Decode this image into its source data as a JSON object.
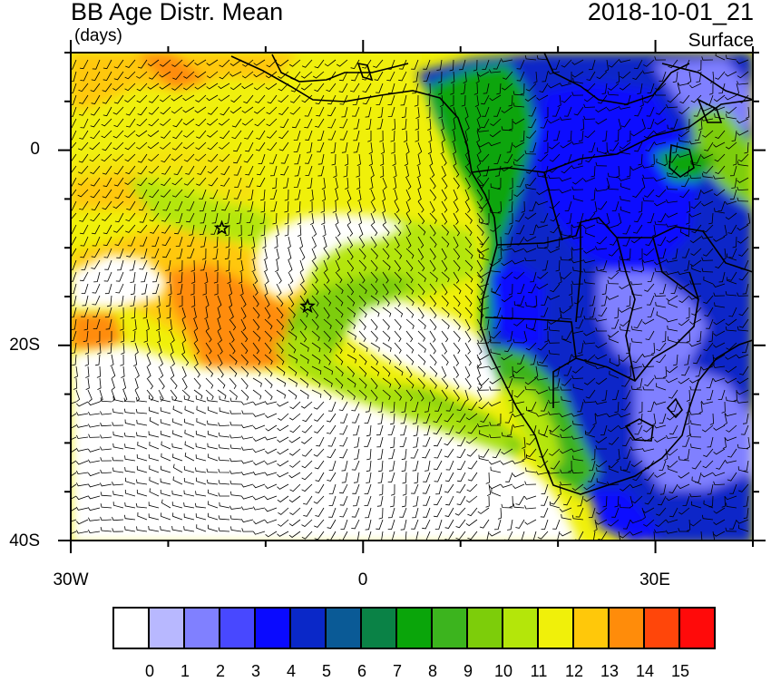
{
  "header": {
    "title": "BB Age Distr. Mean",
    "units": "(days)",
    "datetime": "2018-10-01_21",
    "level": "Surface"
  },
  "axes": {
    "lat_labels": [
      "0",
      "20S",
      "40S"
    ],
    "lon_labels": [
      "30W",
      "0",
      "30E"
    ]
  },
  "colorbar": {
    "labels": [
      "0",
      "1",
      "2",
      "3",
      "4",
      "5",
      "6",
      "7",
      "8",
      "9",
      "10",
      "11",
      "12",
      "13",
      "14",
      "15"
    ],
    "colors": [
      "#ffffff",
      "#b8b8ff",
      "#8080ff",
      "#4848ff",
      "#0a0aff",
      "#0a28c8",
      "#0a5a96",
      "#0a8246",
      "#0aa50a",
      "#3cb41e",
      "#7dcd0a",
      "#b4e60a",
      "#f0f00a",
      "#ffc80a",
      "#ff8c0a",
      "#ff460a",
      "#ff0a0a"
    ]
  },
  "markers": [
    {
      "name": "star-site-1",
      "lon": -14.5,
      "lat": -8.0
    },
    {
      "name": "star-site-2",
      "lon": -5.7,
      "lat": -16.0
    }
  ],
  "map_extent": {
    "lon": [
      -30,
      40
    ],
    "lat": [
      -40,
      10
    ]
  },
  "meta": {
    "wind_barbs": true,
    "coastlines": true,
    "country_borders": true
  }
}
